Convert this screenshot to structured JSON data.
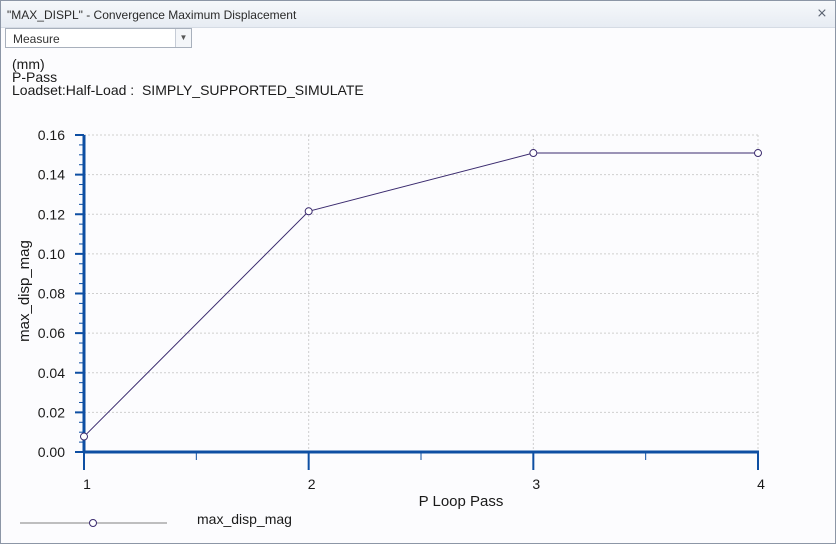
{
  "window": {
    "title": "\"MAX_DISPL\" - Convergence Maximum Displacement",
    "close_glyph": "close-icon"
  },
  "toolbar": {
    "measure_select": "Measure"
  },
  "info": {
    "units": "(mm)",
    "method": "P-Pass",
    "loadset": "Loadset:Half-Load :  SIMPLY_SUPPORTED_SIMULATE"
  },
  "colors": {
    "axis": "#0e4fa3",
    "series": "#3a2a6e",
    "grid": "#cfcfcf"
  },
  "chart_data": {
    "type": "line",
    "xlabel": "P Loop Pass",
    "ylabel": "max_disp_mag",
    "xlim": [
      1,
      4
    ],
    "ylim": [
      0.0,
      0.16
    ],
    "xticks": [
      "1",
      "2",
      "3",
      "4"
    ],
    "yticks": [
      "0.00",
      "0.02",
      "0.04",
      "0.06",
      "0.08",
      "0.10",
      "0.12",
      "0.14",
      "0.16"
    ],
    "grid": true,
    "legend_position": "bottom-left",
    "series": [
      {
        "name": "max_disp_mag",
        "x": [
          1,
          2,
          3,
          4
        ],
        "y": [
          0.0078,
          0.1215,
          0.1509,
          0.1509
        ]
      }
    ]
  }
}
